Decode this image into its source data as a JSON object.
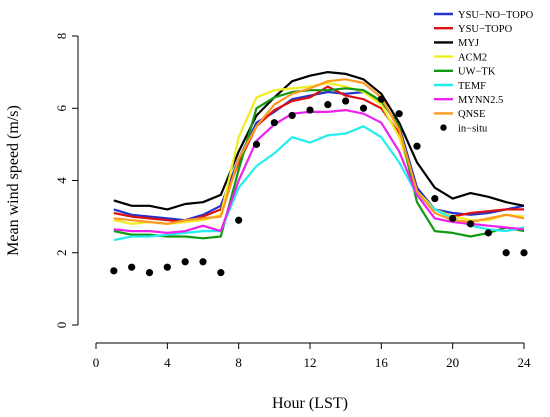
{
  "chart_data": {
    "type": "line",
    "xlabel": "Hour (LST)",
    "ylabel": "Mean wind speed (m/s)",
    "xlim": [
      0,
      24
    ],
    "ylim": [
      0,
      8
    ],
    "xticks": [
      0,
      4,
      8,
      12,
      16,
      20,
      24
    ],
    "yticks": [
      0,
      2,
      4,
      6,
      8
    ],
    "grid": false,
    "legend_position": "top-right",
    "x": [
      1,
      2,
      3,
      4,
      5,
      6,
      7,
      8,
      9,
      10,
      11,
      12,
      13,
      14,
      15,
      16,
      17,
      18,
      19,
      20,
      21,
      22,
      23,
      24
    ],
    "series": [
      {
        "name": "YSU−NO−TOPO",
        "color": "#2233cc",
        "values": [
          3.2,
          3.05,
          3.0,
          2.95,
          2.9,
          3.05,
          3.3,
          4.6,
          5.6,
          5.9,
          6.25,
          6.35,
          6.45,
          6.4,
          6.45,
          6.2,
          5.5,
          3.8,
          3.2,
          3.1,
          3.05,
          3.1,
          3.2,
          3.3
        ]
      },
      {
        "name": "YSU−TOPO",
        "color": "#dd1111",
        "values": [
          3.1,
          3.0,
          2.95,
          2.9,
          2.85,
          3.0,
          3.2,
          4.5,
          5.5,
          5.95,
          6.2,
          6.3,
          6.6,
          6.35,
          6.25,
          6.0,
          5.3,
          3.7,
          3.2,
          3.0,
          3.1,
          3.15,
          3.2,
          3.2
        ]
      },
      {
        "name": "MYJ",
        "color": "#000000",
        "values": [
          3.45,
          3.3,
          3.3,
          3.2,
          3.35,
          3.4,
          3.6,
          4.8,
          5.8,
          6.3,
          6.75,
          6.9,
          7.0,
          6.95,
          6.8,
          6.4,
          5.6,
          4.5,
          3.8,
          3.5,
          3.65,
          3.55,
          3.4,
          3.3
        ]
      },
      {
        "name": "ACM2",
        "color": "#eeee22",
        "values": [
          2.9,
          2.8,
          2.85,
          2.8,
          2.85,
          2.9,
          3.05,
          5.2,
          6.3,
          6.5,
          6.55,
          6.6,
          6.7,
          6.6,
          6.45,
          6.1,
          5.2,
          3.7,
          3.2,
          3.0,
          2.9,
          2.9,
          3.05,
          3.0
        ]
      },
      {
        "name": "UW−TK",
        "color": "#119911",
        "values": [
          2.6,
          2.5,
          2.5,
          2.45,
          2.45,
          2.4,
          2.45,
          4.3,
          6.0,
          6.3,
          6.45,
          6.5,
          6.5,
          6.55,
          6.5,
          6.2,
          5.5,
          3.4,
          2.6,
          2.55,
          2.45,
          2.55,
          2.7,
          2.6
        ]
      },
      {
        "name": "TEMF",
        "color": "#22eeee",
        "values": [
          2.35,
          2.45,
          2.45,
          2.5,
          2.55,
          2.6,
          2.6,
          3.8,
          4.4,
          4.75,
          5.2,
          5.05,
          5.25,
          5.3,
          5.5,
          5.2,
          4.5,
          3.6,
          3.2,
          2.95,
          2.75,
          2.65,
          2.6,
          2.7
        ]
      },
      {
        "name": "MYNN2.5",
        "color": "#ee22ee",
        "values": [
          2.65,
          2.6,
          2.6,
          2.55,
          2.6,
          2.75,
          2.6,
          4.0,
          5.1,
          5.55,
          5.85,
          5.9,
          5.9,
          5.95,
          5.85,
          5.6,
          4.8,
          3.6,
          2.95,
          2.85,
          2.8,
          2.75,
          2.7,
          2.65
        ]
      },
      {
        "name": "QNSE",
        "color": "#ff9922",
        "values": [
          2.95,
          2.9,
          2.85,
          2.8,
          2.9,
          2.95,
          3.0,
          4.6,
          5.5,
          6.1,
          6.4,
          6.55,
          6.75,
          6.8,
          6.7,
          6.3,
          5.4,
          3.7,
          3.1,
          2.9,
          2.85,
          2.95,
          3.05,
          2.95
        ]
      }
    ],
    "observations": {
      "name": "in−situ",
      "color": "#000000",
      "values": [
        1.5,
        1.6,
        1.45,
        1.6,
        1.75,
        1.75,
        1.45,
        2.9,
        5.0,
        5.6,
        5.8,
        5.95,
        6.1,
        6.2,
        6.0,
        6.25,
        5.85,
        4.95,
        3.5,
        2.95,
        2.8,
        2.55,
        2.0,
        2.0
      ]
    }
  }
}
